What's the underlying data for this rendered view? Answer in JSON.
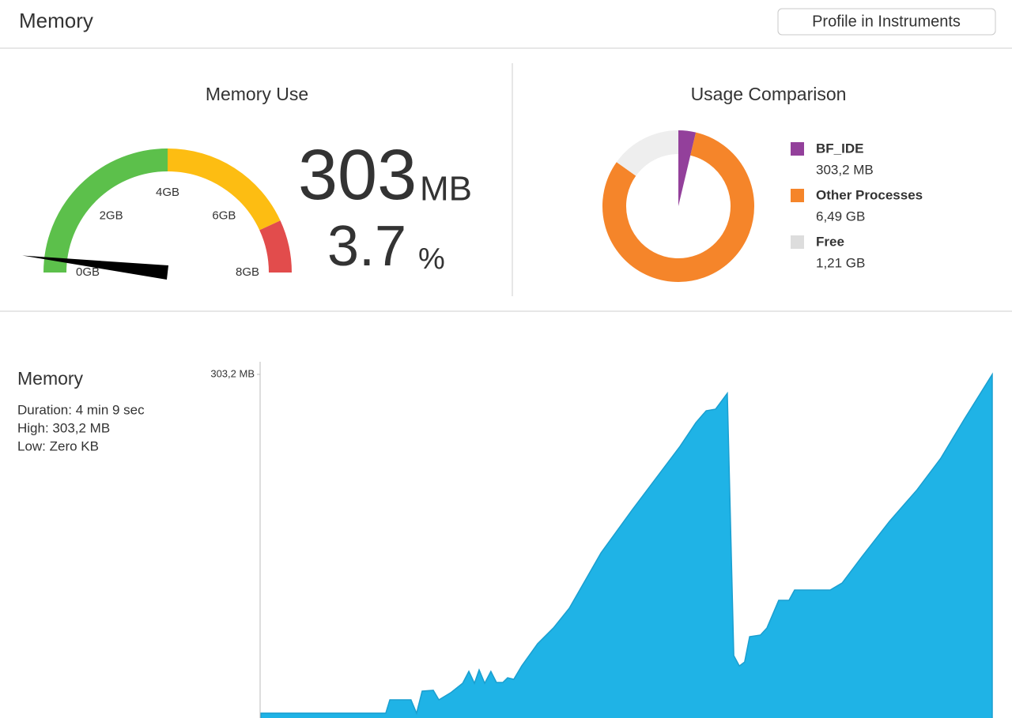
{
  "header": {
    "title": "Memory",
    "button": "Profile in Instruments"
  },
  "chart_data": [
    {
      "type": "gauge",
      "title": "Memory Use",
      "value": 303,
      "unit": "MB",
      "percent": 3.7,
      "percent_unit": "%",
      "lim": [
        0,
        8192
      ],
      "ticks": [
        {
          "value": 0,
          "label": "0GB"
        },
        {
          "value": 2048,
          "label": "2GB"
        },
        {
          "value": 4096,
          "label": "4GB"
        },
        {
          "value": 6144,
          "label": "6GB"
        },
        {
          "value": 8192,
          "label": "8GB"
        }
      ],
      "segments": [
        {
          "to": 4096,
          "color": "#5cc04b"
        },
        {
          "to": 7065,
          "color": "#fdbd12"
        },
        {
          "to": 8192,
          "color": "#e24c4c"
        }
      ],
      "needle_color": "#000000"
    },
    {
      "type": "pie",
      "title": "Usage Comparison",
      "donut": true,
      "categories": [
        "BF_IDE",
        "Other Processes",
        "Free"
      ],
      "values": [
        303.2,
        6645.76,
        1239.04
      ],
      "value_labels": [
        "303,2 MB",
        "6,49 GB",
        "1,21 GB"
      ],
      "colors": [
        "#93409b",
        "#f5852a",
        "#eeeeee"
      ],
      "legend_colors": [
        "#93409b",
        "#f5852a",
        "#dddddd"
      ]
    },
    {
      "type": "area",
      "title": "Memory",
      "details": [
        "Duration: 4 min 9 sec",
        "High: 303,2 MB",
        "Low: Zero KB"
      ],
      "x": [
        0,
        42.5,
        43.9,
        51.1,
        53.0,
        54.9,
        58.7,
        60.6,
        64.6,
        68.7,
        70.8,
        72.7,
        74.3,
        76.2,
        78.3,
        80.2,
        82.4,
        84.0,
        86.1,
        88.8,
        94.2,
        99.6,
        105.0,
        115.8,
        126.5,
        134.6,
        142.7,
        148.1,
        151.6,
        154.8,
        158.8,
        161.0,
        162.9,
        164.7,
        166.4,
        170.1,
        172.3,
        176.3,
        179.8,
        181.7,
        193.8,
        197.9,
        204.6,
        214.0,
        223.4,
        231.5,
        239.6,
        249.0
      ],
      "values": [
        11.6,
        11.6,
        23.1,
        23.1,
        11.6,
        30.6,
        31.3,
        23.1,
        29.2,
        37.4,
        47.6,
        37.4,
        48.9,
        37.4,
        47.6,
        38.1,
        38.1,
        42.1,
        40.8,
        52.3,
        71.4,
        85.0,
        102.0,
        149.6,
        186.9,
        214.1,
        241.3,
        261.7,
        271.9,
        273.3,
        286.9,
        61.2,
        52.3,
        55.7,
        77.5,
        78.9,
        85.0,
        108.8,
        108.8,
        117.6,
        117.6,
        123.7,
        146.2,
        176.7,
        203.9,
        231.1,
        265.1,
        303.2
      ],
      "xlim": [
        0,
        249
      ],
      "ylim": [
        0,
        303.2
      ],
      "yticks": [
        {
          "value": 303.2,
          "label": "303,2 MB"
        }
      ],
      "color": "#1fb3e6",
      "line_color": "#1a9fd0"
    }
  ]
}
